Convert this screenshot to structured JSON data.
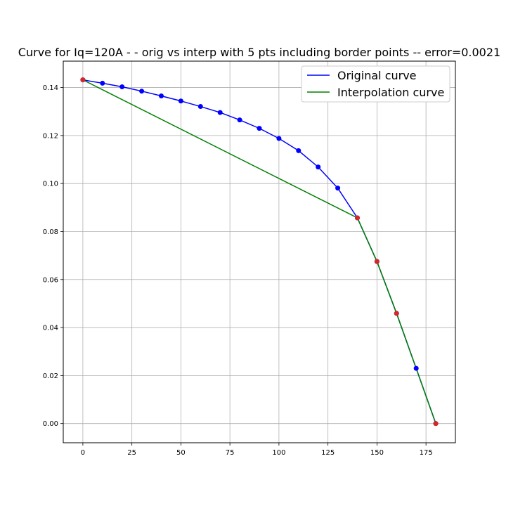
{
  "chart_data": {
    "type": "line",
    "title": "Curve for Iq=120A - - orig vs interp with 5 pts including border points -- error=0.0021",
    "xlabel": "",
    "ylabel": "",
    "xlim": [
      -10,
      190
    ],
    "ylim": [
      -0.008,
      0.151
    ],
    "x_ticks": [
      0,
      25,
      50,
      75,
      100,
      125,
      150,
      175
    ],
    "y_ticks": [
      0.0,
      0.02,
      0.04,
      0.06,
      0.08,
      0.1,
      0.12,
      0.14
    ],
    "grid": true,
    "legend_position": "top-right",
    "series": [
      {
        "name": "Original curve",
        "color": "#0000ff",
        "x": [
          0,
          10,
          20,
          30,
          40,
          50,
          60,
          70,
          80,
          90,
          100,
          110,
          120,
          130,
          140,
          150,
          160,
          170,
          180
        ],
        "y": [
          0.1432,
          0.1418,
          0.1403,
          0.1385,
          0.1365,
          0.1344,
          0.1321,
          0.1296,
          0.1265,
          0.123,
          0.1188,
          0.1137,
          0.1069,
          0.0981,
          0.0857,
          0.0675,
          0.0459,
          0.023,
          0.0
        ]
      },
      {
        "name": "Interpolation curve",
        "color": "#008000",
        "x": [
          0,
          140,
          150,
          160,
          180
        ],
        "y": [
          0.1432,
          0.0857,
          0.0675,
          0.0459,
          0.0
        ]
      }
    ],
    "markers": {
      "original_color": "#0000ff",
      "interp_color": "#d62728"
    }
  }
}
